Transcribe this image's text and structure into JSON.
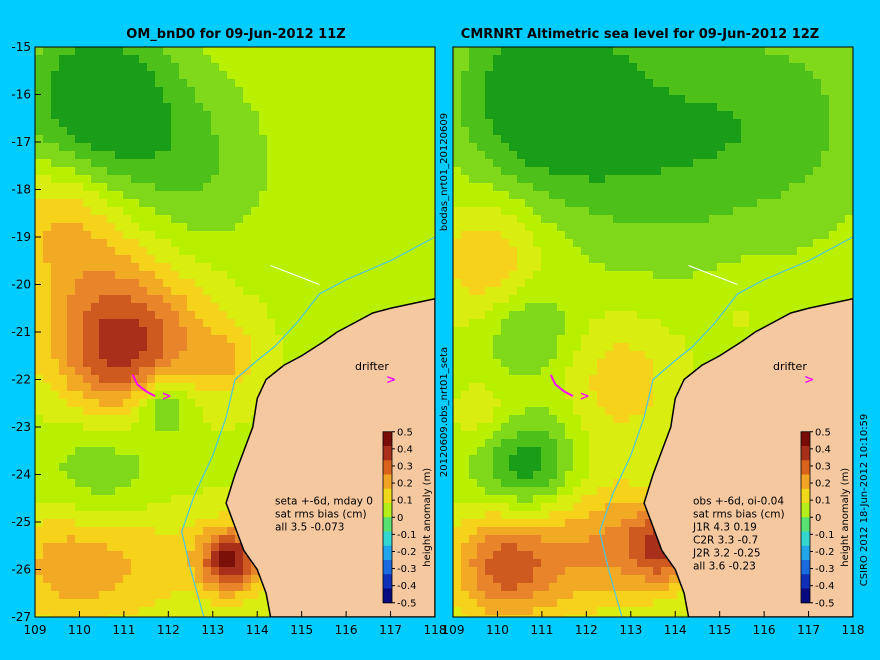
{
  "colors": {
    "background": "#00CCFF",
    "land": "#F5C8A0",
    "map_ramp": [
      "#1A9E1A",
      "#4DC11A",
      "#80D81A",
      "#B8F000",
      "#D9EE10",
      "#F7D21A",
      "#F2A924",
      "#E8852A",
      "#CF5A1F",
      "#A8301A",
      "#7A1008"
    ],
    "colorbar_ramp": [
      "#0A0A80",
      "#0F2FB8",
      "#1A6AE0",
      "#22A6EA",
      "#34D6D0",
      "#58E070",
      "#B5EE1A",
      "#F0D81A",
      "#F0A324",
      "#D8641C",
      "#A8301A",
      "#7A0C08"
    ],
    "coast": "#000000",
    "isobath": "#4DC6E0",
    "drifter": "#FF00FF"
  },
  "side_labels": {
    "center_top": "bodas_nrt01_20120609",
    "center_bottom": "20120609.obs_nrt01_seta",
    "right": "CSIRO 2012  18-Jun-2012 10:10:59"
  },
  "chart_data": [
    {
      "type": "heatmap",
      "title": "OM_bnD0 for 09-Jun-2012 11Z",
      "xlabel": "",
      "ylabel": "",
      "xlim": [
        109,
        118
      ],
      "ylim": [
        -27,
        -15
      ],
      "x_ticks": [
        109,
        110,
        111,
        112,
        113,
        114,
        115,
        116,
        117,
        118
      ],
      "y_ticks": [
        -15,
        -16,
        -17,
        -18,
        -19,
        -20,
        -21,
        -22,
        -23,
        -24,
        -25,
        -26,
        -27
      ],
      "drifter_label": "drifter",
      "stats_lines": [
        "seta +-6d, mday 0",
        "sat rms bias (cm)",
        "all 3.5 -0.073"
      ],
      "colorbar": {
        "label": "height anomaly (m)",
        "range": [
          -0.5,
          0.5
        ],
        "ticks": [
          "0.5",
          "0.4",
          "0.3",
          "0.2",
          "0.1",
          "0",
          "-0.1",
          "-0.2",
          "-0.3",
          "-0.4",
          "-0.5"
        ]
      },
      "features": [
        {
          "lon": 110.3,
          "lat": -16.0,
          "value": -0.15,
          "radius": 1.2
        },
        {
          "lon": 112.2,
          "lat": -17.5,
          "value": -0.05,
          "radius": 1.5
        },
        {
          "lon": 109.6,
          "lat": -18.5,
          "value": 0.17,
          "radius": 0.8
        },
        {
          "lon": 110.5,
          "lat": -19.8,
          "value": 0.22,
          "radius": 1.3
        },
        {
          "lon": 110.9,
          "lat": -21.5,
          "value": 0.35,
          "radius": 1.0
        },
        {
          "lon": 111.9,
          "lat": -22.5,
          "value": -0.1,
          "radius": 0.45
        },
        {
          "lon": 110.6,
          "lat": -24.2,
          "value": -0.05,
          "radius": 1.1
        },
        {
          "lon": 109.7,
          "lat": -25.8,
          "value": 0.25,
          "radius": 0.9
        },
        {
          "lon": 111.4,
          "lat": -25.6,
          "value": 0.2,
          "radius": 1.0
        },
        {
          "lon": 112.4,
          "lat": -21.0,
          "value": 0.15,
          "radius": 0.9
        },
        {
          "lon": 113.3,
          "lat": -21.6,
          "value": 0.18,
          "radius": 0.5
        },
        {
          "lon": 113.4,
          "lat": -25.8,
          "value": 0.45,
          "radius": 0.5
        }
      ],
      "base_value": 0.08
    },
    {
      "type": "heatmap",
      "title": "CMRNRT Altimetric sea level  for 09-Jun-2012 12Z",
      "xlabel": "",
      "ylabel": "",
      "xlim": [
        109,
        118
      ],
      "ylim": [
        -27,
        -15
      ],
      "x_ticks": [
        109,
        110,
        111,
        112,
        113,
        114,
        115,
        116,
        117,
        118
      ],
      "y_ticks": [],
      "drifter_label": "drifter",
      "stats_lines": [
        "obs +-6d, oi-0.04",
        "sat rms bias (cm)",
        "J1R   4.3  0.19",
        "C2R  3.3  -0.7",
        "J2R   3.2  -0.25",
        "all 3.6 -0.23"
      ],
      "colorbar": {
        "label": "height anomaly (m)",
        "range": [
          -0.5,
          0.5
        ],
        "ticks": [
          "0.5",
          "0.4",
          "0.3",
          "0.2",
          "0.1",
          "0",
          "-0.1",
          "-0.2",
          "-0.3",
          "-0.4",
          "-0.5"
        ]
      },
      "features": [
        {
          "lon": 111.0,
          "lat": -16.0,
          "value": -0.17,
          "radius": 1.3
        },
        {
          "lon": 113.5,
          "lat": -17.0,
          "value": -0.07,
          "radius": 1.8
        },
        {
          "lon": 116.5,
          "lat": -16.5,
          "value": -0.04,
          "radius": 1.6
        },
        {
          "lon": 109.8,
          "lat": -19.5,
          "value": 0.2,
          "radius": 0.9
        },
        {
          "lon": 110.7,
          "lat": -21.0,
          "value": -0.05,
          "radius": 0.7
        },
        {
          "lon": 110.6,
          "lat": -23.8,
          "value": -0.15,
          "radius": 0.8
        },
        {
          "lon": 109.8,
          "lat": -22.8,
          "value": 0.15,
          "radius": 0.6
        },
        {
          "lon": 112.8,
          "lat": -22.0,
          "value": 0.18,
          "radius": 1.0
        },
        {
          "lon": 112.4,
          "lat": -25.5,
          "value": 0.25,
          "radius": 1.0
        },
        {
          "lon": 110.2,
          "lat": -25.9,
          "value": 0.35,
          "radius": 0.9
        },
        {
          "lon": 113.8,
          "lat": -25.5,
          "value": 0.35,
          "radius": 0.6
        },
        {
          "lon": 115.5,
          "lat": -20.5,
          "value": 0.1,
          "radius": 0.6
        }
      ],
      "base_value": 0.06
    }
  ]
}
